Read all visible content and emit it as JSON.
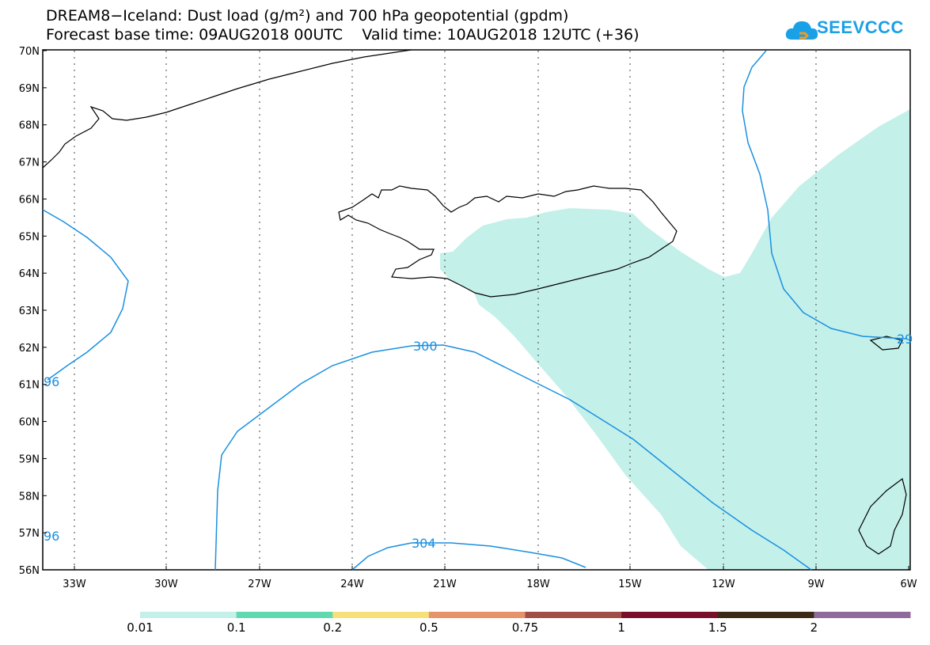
{
  "title": {
    "line1": "DREAM8−Iceland: Dust load (g/m²) and 700 hPa geopotential (gpdm)",
    "line2": "Forecast base time: 09AUG2018 00UTC    Valid time: 10AUG2018 12UTC (+36)"
  },
  "logo": {
    "text": "SEEVCCC",
    "icon": "cloud-icon"
  },
  "map": {
    "lat_labels": [
      "70N",
      "69N",
      "68N",
      "67N",
      "66N",
      "65N",
      "64N",
      "63N",
      "62N",
      "61N",
      "60N",
      "59N",
      "58N",
      "57N",
      "56N"
    ],
    "lon_labels": [
      "33W",
      "30W",
      "27W",
      "24W",
      "21W",
      "18W",
      "15W",
      "12W",
      "9W",
      "6W"
    ],
    "contour_labels": {
      "c300": "300",
      "c304": "304",
      "c296_upper": "96",
      "c296_lower": "96",
      "c29_right": "29"
    },
    "dust_fill_color": "#c4f0ea",
    "contour_color": "#1a90e0"
  },
  "colorbar": {
    "labels": [
      "0.01",
      "0.1",
      "0.2",
      "0.5",
      "0.75",
      "1",
      "1.5",
      "2"
    ],
    "colors": [
      "#c4f0ea",
      "#5fd9b0",
      "#f5e07a",
      "#e8926a",
      "#a14e46",
      "#7a0f2a",
      "#3b2a14",
      "#8f6a9a"
    ]
  }
}
